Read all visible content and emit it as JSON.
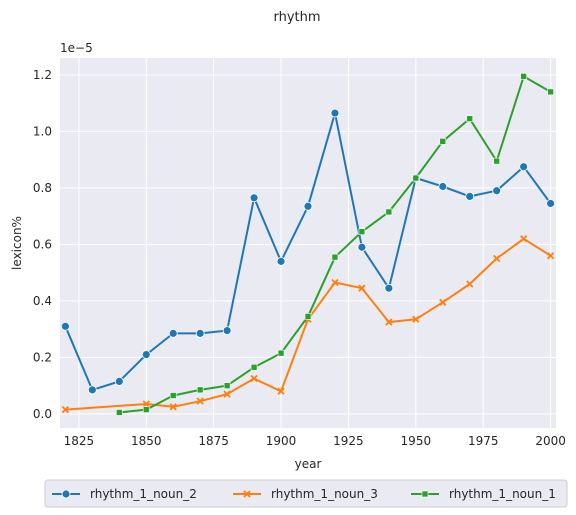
{
  "chart_data": {
    "type": "line",
    "title": "rhythm",
    "xlabel": "year",
    "ylabel": "lexicon%",
    "y_scale_label": "1e−5",
    "xlim": [
      1818,
      2002
    ],
    "ylim": [
      -0.05,
      1.26
    ],
    "x_ticks": [
      1825,
      1850,
      1875,
      1900,
      1925,
      1950,
      1975,
      2000
    ],
    "y_ticks": [
      0.0,
      0.2,
      0.4,
      0.6,
      0.8,
      1.0,
      1.2
    ],
    "y_tick_labels": [
      "0.0",
      "0.2",
      "0.4",
      "0.6",
      "0.8",
      "1.0",
      "1.2"
    ],
    "grid": true,
    "legend_position": "bottom",
    "series": [
      {
        "name": "rhythm_1_noun_2",
        "color": "#1f77b4",
        "marker": "circle",
        "x": [
          1820,
          1830,
          1840,
          1850,
          1860,
          1870,
          1880,
          1890,
          1900,
          1910,
          1920,
          1930,
          1940,
          1950,
          1960,
          1970,
          1980,
          1990,
          2000
        ],
        "y": [
          0.31,
          0.085,
          0.115,
          0.21,
          0.285,
          0.285,
          0.295,
          0.765,
          0.54,
          0.735,
          1.065,
          0.59,
          0.445,
          0.835,
          0.805,
          0.77,
          0.79,
          0.875,
          0.745
        ]
      },
      {
        "name": "rhythm_1_noun_3",
        "color": "#ff7f0e",
        "marker": "x",
        "x": [
          1820,
          1850,
          1860,
          1870,
          1880,
          1890,
          1900,
          1910,
          1920,
          1930,
          1940,
          1950,
          1960,
          1970,
          1980,
          1990,
          2000
        ],
        "y": [
          0.015,
          0.035,
          0.025,
          0.045,
          0.07,
          0.125,
          0.08,
          0.335,
          0.465,
          0.445,
          0.325,
          0.335,
          0.395,
          0.46,
          0.55,
          0.62,
          0.56
        ]
      },
      {
        "name": "rhythm_1_noun_1",
        "color": "#2ca02c",
        "marker": "square",
        "x": [
          1840,
          1850,
          1860,
          1870,
          1880,
          1890,
          1900,
          1910,
          1920,
          1930,
          1940,
          1950,
          1960,
          1970,
          1980,
          1990,
          2000
        ],
        "y": [
          0.005,
          0.015,
          0.065,
          0.085,
          0.1,
          0.165,
          0.215,
          0.345,
          0.555,
          0.645,
          0.715,
          0.835,
          0.965,
          1.045,
          0.895,
          1.195,
          1.14
        ]
      }
    ]
  }
}
